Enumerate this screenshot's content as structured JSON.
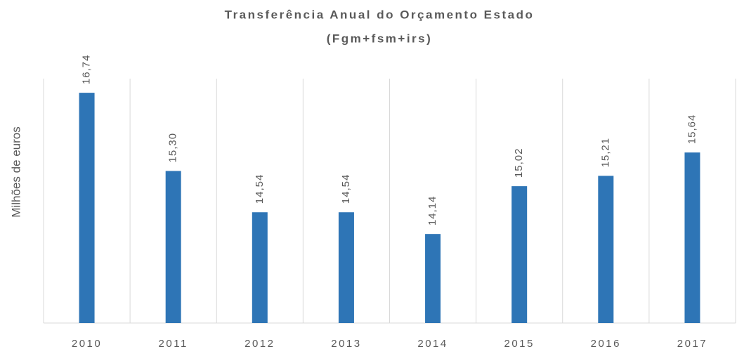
{
  "chart_data": {
    "type": "bar",
    "title": "Transferência  Anual  do Orçamento Estado",
    "subtitle": "(Fgm+fsm+irs)",
    "y_label": "Milhões de euros",
    "categories": [
      "2010",
      "2011",
      "2012",
      "2013",
      "2014",
      "2015",
      "2016",
      "2017"
    ],
    "values": [
      16.74,
      15.3,
      14.54,
      14.54,
      14.14,
      15.02,
      15.21,
      15.64
    ],
    "value_labels": [
      "16,74",
      "15,30",
      "14,54",
      "14,54",
      "14,14",
      "15,02",
      "15,21",
      "15,64"
    ],
    "color": "#2e75b6",
    "ylim": [
      12.5,
      17
    ]
  }
}
